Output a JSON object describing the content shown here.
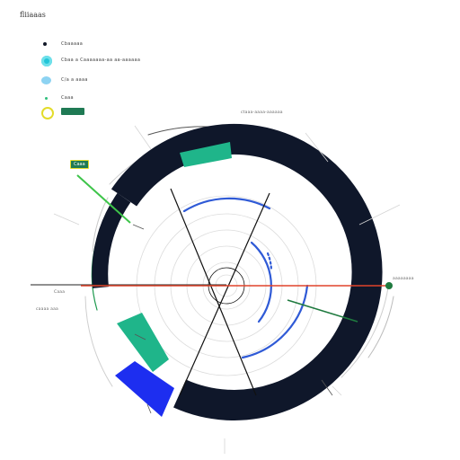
{
  "title": "fliiaaas",
  "legend": [
    {
      "key": "legend-dark-dot",
      "label": "Cbaaaaa",
      "color": "#111827",
      "icon": "small-dot-icon"
    },
    {
      "key": "legend-teal",
      "label": "Cbaa a Caaaaaaa-aa aa-aaaaaa",
      "color": "#22c5d8",
      "icon": "teal-dot-icon"
    },
    {
      "key": "legend-light-blue",
      "label": "C/a a aaaa",
      "color": "#4fb3e6",
      "icon": "light-blue-dot-icon"
    },
    {
      "key": "legend-sparkle",
      "label": "Caaa",
      "color": "#2fbf7c",
      "icon": "sparkle-icon"
    },
    {
      "key": "legend-yellow",
      "label": "",
      "color": "#e3dc2a",
      "icon": "yellow-ring-icon"
    }
  ],
  "tags": {
    "top_green": "",
    "left_green": "Caaa"
  },
  "annotations": {
    "top_right": "ctaaa-aaaa-aaaaaa",
    "right": "aaaaaaaa",
    "left": "Caaa",
    "left_low": "caaaa aaa"
  },
  "colors": {
    "ring": "#0f172a",
    "teal": "#1fb58a",
    "blue": "#1d2ef0",
    "arc_blue": "#2f5ad6",
    "red": "#e0442b",
    "green": "#1f7a3f",
    "grid": "#d8d8d8"
  }
}
